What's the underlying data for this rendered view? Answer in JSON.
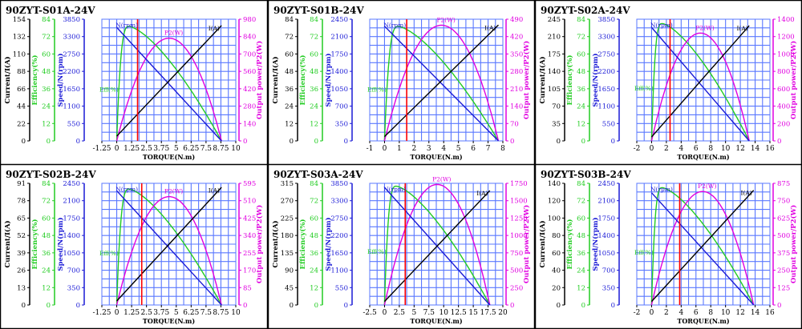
{
  "colors": {
    "current": "#000000",
    "efficiency": "#22cc22",
    "speed": "#1a1ad6",
    "power": "#e000e0",
    "rated": "#ff0000",
    "grid": "#5a78ff",
    "plot_bg": "#ffffff",
    "border": "#000000"
  },
  "common_labels": {
    "current_axis": "Current/I(A)",
    "efficiency_axis": "Efficiency(%)",
    "speed_axis": "Speed/N(rpm)",
    "power_axis": "Output power/P2(W)",
    "x_axis": "TORQUE(N.m)",
    "speed_curve": "N(rpm)",
    "power_curve": "P2(W)",
    "current_curve": "I(A)",
    "efficiency_curve": "Eff(%)"
  },
  "chart_data": [
    {
      "type": "line",
      "title": "90ZYT-S01A-24V",
      "x_ticks": [
        "-1.25",
        "0",
        "1.25",
        "2.5",
        "3.75",
        "5",
        "6.25",
        "7.5",
        "8.75",
        "10"
      ],
      "xlim": [
        -1.25,
        10
      ],
      "current_ticks": [
        "0",
        "22",
        "44",
        "66",
        "88",
        "110",
        "132",
        "154"
      ],
      "current_max": 154,
      "efficiency_ticks": [
        "0",
        "12",
        "24",
        "36",
        "48",
        "60",
        "72",
        "84"
      ],
      "efficiency_max": 84,
      "speed_ticks": [
        "0",
        "550",
        "1100",
        "1650",
        "2200",
        "2750",
        "3300",
        "3850"
      ],
      "speed_max": 3850,
      "power_ticks": [
        "0",
        "140",
        "280",
        "420",
        "560",
        "700",
        "840",
        "980"
      ],
      "power_max": 980,
      "stall_torque": 8.8,
      "no_load_speed": 3590,
      "no_load_current": 6,
      "stall_current": 146,
      "peak_efficiency": 79,
      "peak_efficiency_torque": 1.05,
      "rated_torque": 1.75
    },
    {
      "type": "line",
      "title": "90ZYT-S01B-24V",
      "x_ticks": [
        "-1",
        "0",
        "1",
        "2",
        "3",
        "4",
        "5",
        "6",
        "7",
        "8"
      ],
      "xlim": [
        -1,
        8
      ],
      "current_ticks": [
        "0",
        "12",
        "24",
        "36",
        "48",
        "60",
        "72",
        "84"
      ],
      "current_max": 84,
      "efficiency_ticks": [
        "0",
        "12",
        "24",
        "36",
        "48",
        "60",
        "72",
        "84"
      ],
      "efficiency_max": 84,
      "speed_ticks": [
        "0",
        "350",
        "700",
        "1050",
        "1400",
        "1750",
        "2100",
        "2450"
      ],
      "speed_max": 2450,
      "power_ticks": [
        "0",
        "70",
        "140",
        "210",
        "280",
        "350",
        "420",
        "490"
      ],
      "power_max": 490,
      "stall_torque": 7.7,
      "no_load_speed": 2310,
      "no_load_current": 3,
      "stall_current": 80,
      "peak_efficiency": 79,
      "peak_efficiency_torque": 0.95,
      "rated_torque": 1.5
    },
    {
      "type": "line",
      "title": "90ZYT-S02A-24V",
      "x_ticks": [
        "-2",
        "0",
        "2",
        "4",
        "6",
        "8",
        "10",
        "12",
        "14",
        "16"
      ],
      "xlim": [
        -2,
        16
      ],
      "current_ticks": [
        "0",
        "35",
        "70",
        "105",
        "140",
        "175",
        "210",
        "245"
      ],
      "current_max": 245,
      "efficiency_ticks": [
        "0",
        "12",
        "24",
        "36",
        "48",
        "60",
        "72",
        "84"
      ],
      "efficiency_max": 84,
      "speed_ticks": [
        "0",
        "550",
        "1100",
        "1650",
        "2200",
        "2750",
        "3300",
        "3850"
      ],
      "speed_max": 3850,
      "power_ticks": [
        "0",
        "200",
        "400",
        "600",
        "800",
        "1000",
        "1200",
        "1400"
      ],
      "power_max": 1400,
      "stall_torque": 13.2,
      "no_load_speed": 3590,
      "no_load_current": 8,
      "stall_current": 232,
      "peak_efficiency": 81,
      "peak_efficiency_torque": 1.45,
      "rated_torque": 2.5
    },
    {
      "type": "line",
      "title": "90ZYT-S02B-24V",
      "x_ticks": [
        "-1.25",
        "0",
        "1.25",
        "2.5",
        "3.75",
        "5",
        "6.25",
        "7.5",
        "8.75",
        "10"
      ],
      "xlim": [
        -1.25,
        10
      ],
      "current_ticks": [
        "0",
        "13",
        "26",
        "39",
        "52",
        "65",
        "78",
        "91"
      ],
      "current_max": 91,
      "efficiency_ticks": [
        "0",
        "12",
        "24",
        "36",
        "48",
        "60",
        "72",
        "84"
      ],
      "efficiency_max": 84,
      "speed_ticks": [
        "0",
        "350",
        "700",
        "1050",
        "1400",
        "1750",
        "2100",
        "2450"
      ],
      "speed_max": 2450,
      "power_ticks": [
        "0",
        "85",
        "170",
        "255",
        "340",
        "425",
        "510",
        "595"
      ],
      "power_max": 595,
      "stall_torque": 8.8,
      "no_load_speed": 2300,
      "no_load_current": 3,
      "stall_current": 88,
      "peak_efficiency": 80,
      "peak_efficiency_torque": 1.05,
      "rated_torque": 2.1
    },
    {
      "type": "line",
      "title": "90ZYT-S03A-24V",
      "x_ticks": [
        "-2.5",
        "0",
        "2.5",
        "5",
        "7.5",
        "10",
        "12.5",
        "15",
        "17.5",
        "20"
      ],
      "xlim": [
        -2.5,
        20
      ],
      "current_ticks": [
        "0",
        "45",
        "90",
        "135",
        "180",
        "225",
        "270",
        "315"
      ],
      "current_max": 315,
      "efficiency_ticks": [
        "0",
        "12",
        "24",
        "36",
        "48",
        "60",
        "72",
        "84"
      ],
      "efficiency_max": 84,
      "speed_ticks": [
        "0",
        "550",
        "1100",
        "1650",
        "2200",
        "2750",
        "3300",
        "3850"
      ],
      "speed_max": 3850,
      "power_ticks": [
        "0",
        "250",
        "500",
        "750",
        "1000",
        "1250",
        "1500",
        "1750"
      ],
      "power_max": 1750,
      "stall_torque": 17.8,
      "no_load_speed": 3720,
      "no_load_current": 9,
      "stall_current": 296,
      "peak_efficiency": 82,
      "peak_efficiency_torque": 2.0,
      "rated_torque": 3.5
    },
    {
      "type": "line",
      "title": "90ZYT-S03B-24V",
      "x_ticks": [
        "-2",
        "0",
        "2",
        "4",
        "6",
        "8",
        "10",
        "12",
        "14",
        "16"
      ],
      "xlim": [
        -2,
        16
      ],
      "current_ticks": [
        "0",
        "20",
        "40",
        "60",
        "80",
        "100",
        "120",
        "140"
      ],
      "current_max": 140,
      "efficiency_ticks": [
        "0",
        "12",
        "24",
        "36",
        "48",
        "60",
        "72",
        "84"
      ],
      "efficiency_max": 84,
      "speed_ticks": [
        "0",
        "350",
        "700",
        "1050",
        "1400",
        "1750",
        "2100",
        "2450"
      ],
      "speed_max": 2450,
      "power_ticks": [
        "0",
        "125",
        "250",
        "375",
        "500",
        "625",
        "750",
        "875"
      ],
      "power_max": 875,
      "stall_torque": 13.8,
      "no_load_speed": 2260,
      "no_load_current": 4,
      "stall_current": 132,
      "peak_efficiency": 81,
      "peak_efficiency_torque": 1.45,
      "rated_torque": 3.8
    }
  ]
}
